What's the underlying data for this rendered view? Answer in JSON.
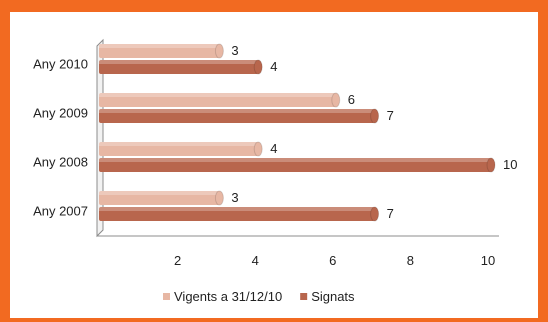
{
  "chart_data": {
    "type": "bar",
    "orientation": "horizontal",
    "categories": [
      "Any 2010",
      "Any 2009",
      "Any 2008",
      "Any 2007"
    ],
    "series": [
      {
        "name": "Vigents a 31/12/10",
        "values": [
          3,
          6,
          4,
          3
        ],
        "color": "#e7b7a4"
      },
      {
        "name": "Signats",
        "values": [
          4,
          7,
          10,
          7
        ],
        "color": "#b8664d"
      }
    ],
    "x_ticks": [
      2,
      4,
      6,
      8,
      10
    ],
    "xlim": [
      0,
      10
    ],
    "grid": false,
    "legend": "bottom",
    "frame_color": "#f26a21"
  }
}
